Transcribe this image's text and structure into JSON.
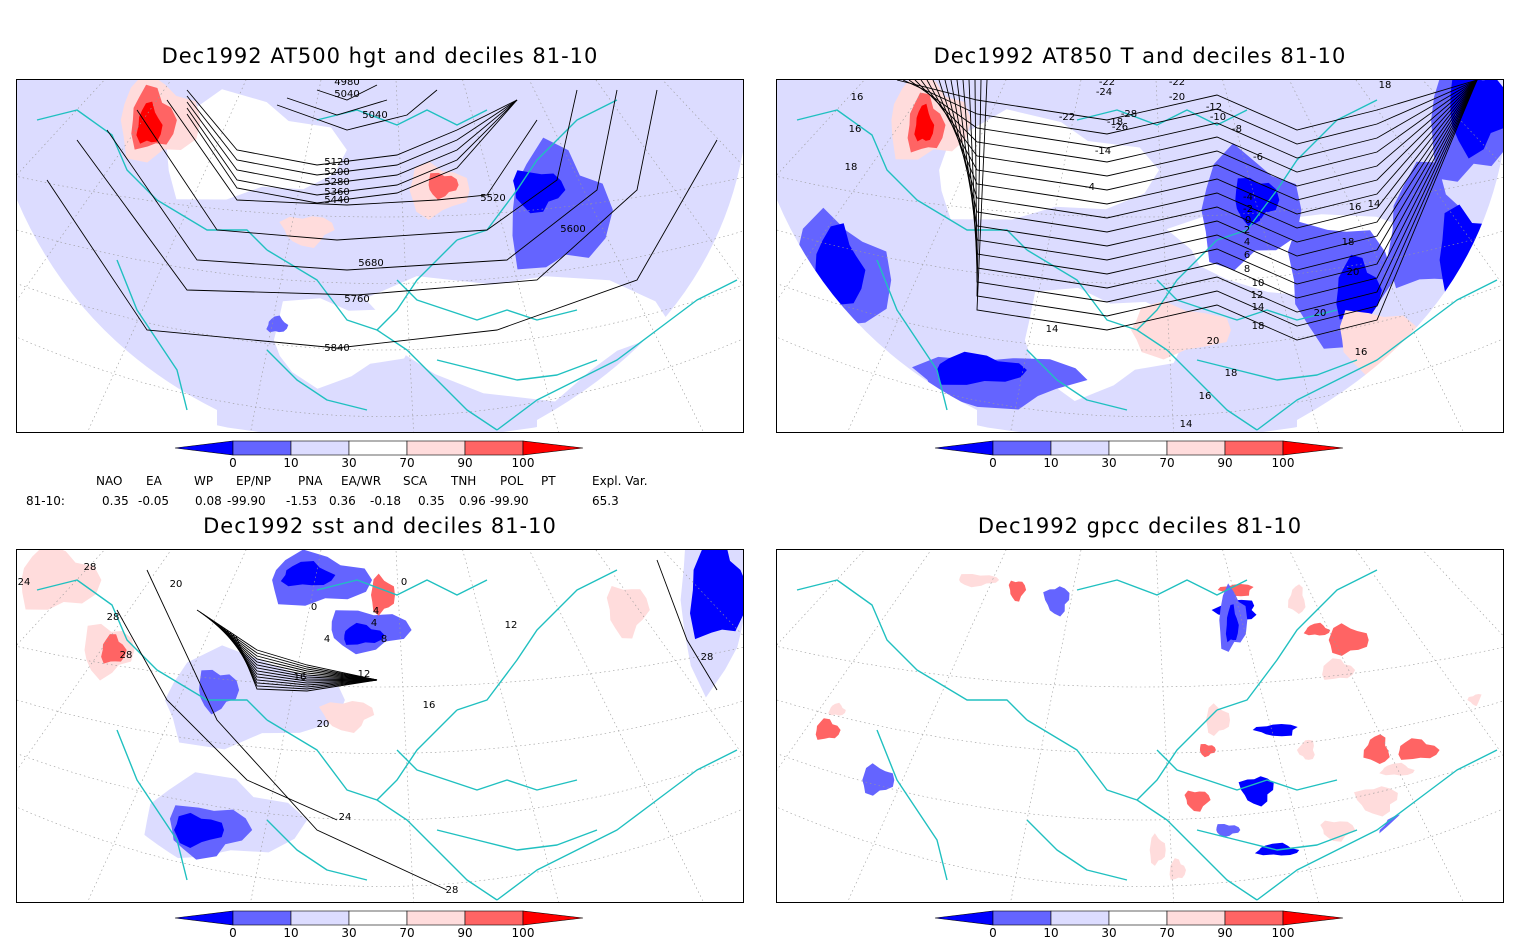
{
  "panels": {
    "top_left": {
      "title": "Dec1992 AT500 hgt and deciles 81-10"
    },
    "top_right": {
      "title": "Dec1992 AT850 T and deciles 81-10"
    },
    "bottom_left": {
      "title": "Dec1992 sst and deciles 81-10"
    },
    "bottom_right": {
      "title": "Dec1992 gpcc deciles 81-10"
    }
  },
  "colorbar": {
    "labels": [
      "0",
      "10",
      "30",
      "70",
      "90",
      "100"
    ],
    "colors": [
      "#0000ff",
      "#6464ff",
      "#dcdcff",
      "#ffffff",
      "#ffdcdc",
      "#ff6464",
      "#ff0000"
    ]
  },
  "indices": {
    "headers": [
      "NAO",
      "EA",
      "WP",
      "EP/NP",
      "PNA",
      "EA/WR",
      "SCA",
      "TNH",
      "POL",
      "PT",
      "Expl. Var."
    ],
    "row_label": "81-10:",
    "values": [
      "0.35",
      "-0.05",
      "0.08",
      "-99.90",
      "-1.53",
      "0.36",
      "-0.18",
      "0.35",
      "0.96",
      "-99.90",
      "65.3"
    ]
  },
  "contour_labels": {
    "hgt": [
      "4980",
      "5040",
      "5040",
      "5120",
      "5200",
      "5280",
      "5360",
      "5440",
      "5520",
      "5600",
      "5680",
      "5760",
      "5840"
    ],
    "t850": [
      "16",
      "16",
      "18",
      "-22",
      "-22",
      "-24",
      "-20",
      "-12",
      "-10",
      "-8",
      "-6",
      "-22",
      "-18",
      "-28",
      "-26",
      "-14",
      "-4",
      "-4",
      "-2",
      "0",
      "2",
      "4",
      "6",
      "8",
      "10",
      "12",
      "14",
      "14",
      "14",
      "16",
      "18",
      "20",
      "20",
      "16",
      "18",
      "20",
      "18",
      "16",
      "14",
      "18"
    ],
    "sst": [
      "24",
      "28",
      "20",
      "28",
      "0",
      "0",
      "4",
      "4",
      "8",
      "12",
      "16",
      "20",
      "16",
      "24",
      "28",
      "28",
      "28",
      "4",
      "12"
    ]
  },
  "colors": {
    "coast": "#20c0c0",
    "grid": "#9a9a9a"
  }
}
